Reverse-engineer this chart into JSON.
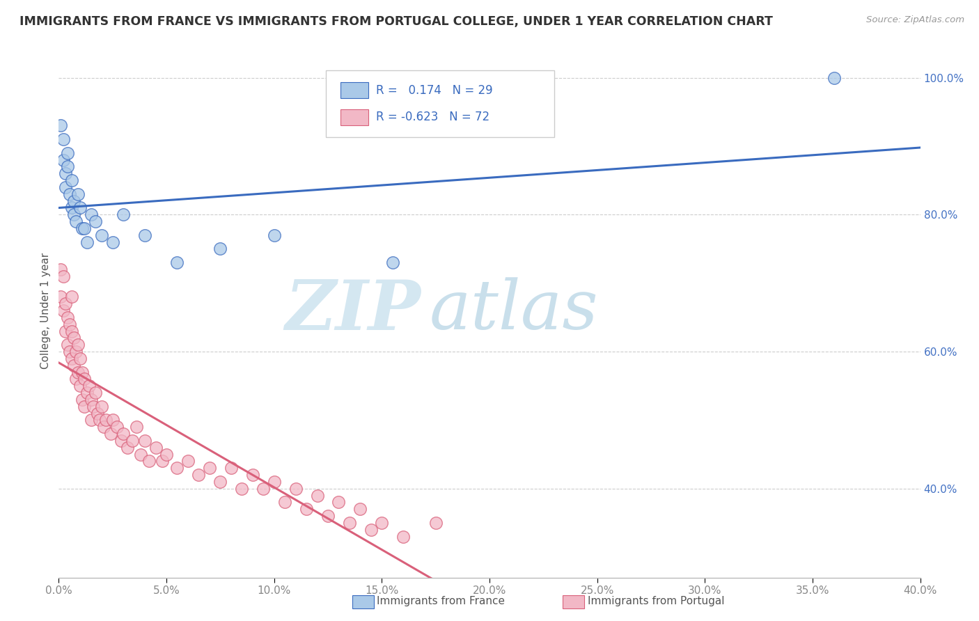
{
  "title": "IMMIGRANTS FROM FRANCE VS IMMIGRANTS FROM PORTUGAL COLLEGE, UNDER 1 YEAR CORRELATION CHART",
  "source": "Source: ZipAtlas.com",
  "ylabel": "College, Under 1 year",
  "legend_france": "Immigrants from France",
  "legend_portugal": "Immigrants from Portugal",
  "R_france": 0.174,
  "N_france": 29,
  "R_portugal": -0.623,
  "N_portugal": 72,
  "xlim": [
    0.0,
    0.4
  ],
  "ylim": [
    0.27,
    1.05
  ],
  "xticks": [
    0.0,
    0.05,
    0.1,
    0.15,
    0.2,
    0.25,
    0.3,
    0.35,
    0.4
  ],
  "yticks": [
    0.4,
    0.6,
    0.8,
    1.0
  ],
  "xticklabels": [
    "0.0%",
    "5.0%",
    "10.0%",
    "15.0%",
    "20.0%",
    "25.0%",
    "30.0%",
    "35.0%",
    "40.0%"
  ],
  "yticklabels": [
    "40.0%",
    "60.0%",
    "80.0%",
    "100.0%"
  ],
  "color_france": "#aac9e8",
  "color_portugal": "#f2b8c6",
  "trendline_france_color": "#3a6bbf",
  "trendline_portugal_color": "#d9607a",
  "trendline_extend_color": "#e0b0bb",
  "background_color": "#ffffff",
  "watermark_zip": "ZIP",
  "watermark_atlas": "atlas",
  "watermark_color_zip": "#cde4ef",
  "watermark_color_atlas": "#b8d8e8",
  "france_x": [
    0.001,
    0.002,
    0.002,
    0.003,
    0.003,
    0.004,
    0.004,
    0.005,
    0.006,
    0.006,
    0.007,
    0.007,
    0.008,
    0.009,
    0.01,
    0.011,
    0.012,
    0.013,
    0.015,
    0.017,
    0.02,
    0.025,
    0.03,
    0.04,
    0.055,
    0.075,
    0.1,
    0.155,
    0.36
  ],
  "france_y": [
    0.93,
    0.88,
    0.91,
    0.86,
    0.84,
    0.89,
    0.87,
    0.83,
    0.81,
    0.85,
    0.82,
    0.8,
    0.79,
    0.83,
    0.81,
    0.78,
    0.78,
    0.76,
    0.8,
    0.79,
    0.77,
    0.76,
    0.8,
    0.77,
    0.73,
    0.75,
    0.77,
    0.73,
    1.0
  ],
  "portugal_x": [
    0.001,
    0.001,
    0.002,
    0.002,
    0.003,
    0.003,
    0.004,
    0.004,
    0.005,
    0.005,
    0.006,
    0.006,
    0.006,
    0.007,
    0.007,
    0.008,
    0.008,
    0.009,
    0.009,
    0.01,
    0.01,
    0.011,
    0.011,
    0.012,
    0.012,
    0.013,
    0.014,
    0.015,
    0.015,
    0.016,
    0.017,
    0.018,
    0.019,
    0.02,
    0.021,
    0.022,
    0.024,
    0.025,
    0.027,
    0.029,
    0.03,
    0.032,
    0.034,
    0.036,
    0.038,
    0.04,
    0.042,
    0.045,
    0.048,
    0.05,
    0.055,
    0.06,
    0.065,
    0.07,
    0.075,
    0.08,
    0.085,
    0.09,
    0.095,
    0.1,
    0.105,
    0.11,
    0.115,
    0.12,
    0.125,
    0.13,
    0.135,
    0.14,
    0.145,
    0.15,
    0.16,
    0.175
  ],
  "portugal_y": [
    0.72,
    0.68,
    0.71,
    0.66,
    0.67,
    0.63,
    0.65,
    0.61,
    0.64,
    0.6,
    0.68,
    0.63,
    0.59,
    0.62,
    0.58,
    0.6,
    0.56,
    0.61,
    0.57,
    0.59,
    0.55,
    0.57,
    0.53,
    0.56,
    0.52,
    0.54,
    0.55,
    0.53,
    0.5,
    0.52,
    0.54,
    0.51,
    0.5,
    0.52,
    0.49,
    0.5,
    0.48,
    0.5,
    0.49,
    0.47,
    0.48,
    0.46,
    0.47,
    0.49,
    0.45,
    0.47,
    0.44,
    0.46,
    0.44,
    0.45,
    0.43,
    0.44,
    0.42,
    0.43,
    0.41,
    0.43,
    0.4,
    0.42,
    0.4,
    0.41,
    0.38,
    0.4,
    0.37,
    0.39,
    0.36,
    0.38,
    0.35,
    0.37,
    0.34,
    0.35,
    0.33,
    0.35
  ]
}
